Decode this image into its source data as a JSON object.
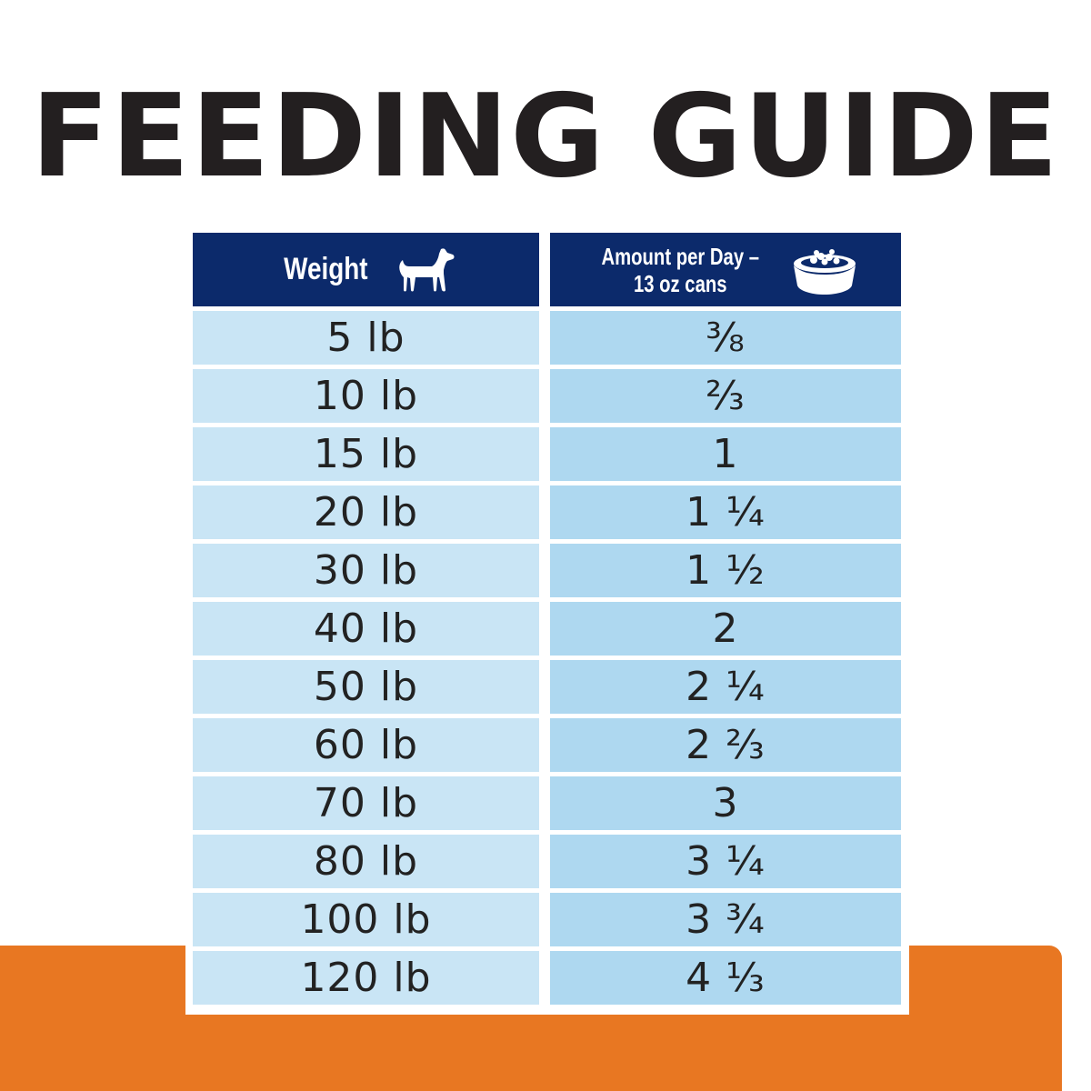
{
  "title": "FEEDING GUIDE",
  "header": {
    "weight_label": "Weight",
    "amount_label_line1": "Amount per Day –",
    "amount_label_line2": "13 oz cans",
    "weight_icon": "dog-icon",
    "amount_icon": "food-bowl-icon"
  },
  "colors": {
    "header_bg": "#0c2a6b",
    "weight_col_bg": "#c9e5f5",
    "amount_col_bg": "#aed8f0",
    "band": "#e87722"
  },
  "rows": [
    {
      "weight": "5 lb",
      "amount": "⅜"
    },
    {
      "weight": "10 lb",
      "amount": "⅔"
    },
    {
      "weight": "15 lb",
      "amount": "1"
    },
    {
      "weight": "20 lb",
      "amount": "1 ¼"
    },
    {
      "weight": "30 lb",
      "amount": "1 ½"
    },
    {
      "weight": "40 lb",
      "amount": "2"
    },
    {
      "weight": "50 lb",
      "amount": "2 ¼"
    },
    {
      "weight": "60 lb",
      "amount": "2 ⅔"
    },
    {
      "weight": "70 lb",
      "amount": "3"
    },
    {
      "weight": "80 lb",
      "amount": "3 ¼"
    },
    {
      "weight": "100 lb",
      "amount": "3 ¾"
    },
    {
      "weight": "120 lb",
      "amount": "4 ⅓"
    }
  ]
}
